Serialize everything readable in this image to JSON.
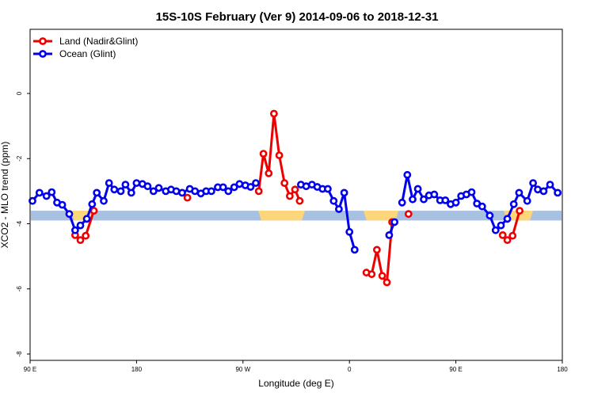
{
  "chart_data": {
    "type": "line",
    "title": "15S-10S February (Ver 9)   2014-09-06 to 2018-12-31",
    "xlabel": "Longitude (deg E)",
    "ylabel": "XCO2 - MLO trend (ppm)",
    "xlim": [
      0,
      91
    ],
    "ylim": [
      -8,
      2
    ],
    "x_ticks": [
      {
        "x": 0,
        "label": "90 E"
      },
      {
        "x": 18.2,
        "label": "180"
      },
      {
        "x": 36.4,
        "label": "90 W"
      },
      {
        "x": 54.6,
        "label": "0"
      },
      {
        "x": 72.8,
        "label": "90 E"
      },
      {
        "x": 91,
        "label": "180"
      }
    ],
    "y_ticks": [
      {
        "y": 0,
        "label": "0"
      },
      {
        "y": -2,
        "label": "-2"
      },
      {
        "y": -4,
        "label": "-4"
      },
      {
        "y": -6,
        "label": "-6"
      },
      {
        "y": -8,
        "label": "-8"
      }
    ],
    "grid": false,
    "legend_position": "top-left",
    "band": {
      "y_bottom": -3.9,
      "y_top": -3.6,
      "base_color": "#a9c1e0",
      "highlight_color": "#fcd67a",
      "highlights": [
        [
          7,
          11
        ],
        [
          39,
          47
        ],
        [
          57,
          63
        ],
        [
          81,
          86
        ]
      ]
    },
    "series": [
      {
        "name": "Land (Nadir&Glint)",
        "color": "#ee0000",
        "segments": [
          [
            [
              7.7,
              -4.35
            ],
            [
              8.6,
              -4.5
            ],
            [
              9.5,
              -4.37
            ],
            [
              10.9,
              -3.6
            ]
          ],
          [
            [
              26.9,
              -3.2
            ]
          ],
          [
            [
              39.1,
              -3.0
            ],
            [
              39.9,
              -1.85
            ],
            [
              40.8,
              -2.45
            ],
            [
              41.7,
              -0.62
            ],
            [
              42.6,
              -1.9
            ],
            [
              43.5,
              -2.75
            ],
            [
              44.4,
              -3.15
            ],
            [
              45.3,
              -2.95
            ],
            [
              46.1,
              -3.3
            ]
          ],
          [
            [
              57.5,
              -5.5
            ],
            [
              58.4,
              -5.55
            ],
            [
              59.3,
              -4.8
            ],
            [
              60.2,
              -5.6
            ],
            [
              61.0,
              -5.8
            ],
            [
              61.9,
              -3.95
            ]
          ],
          [
            [
              64.7,
              -3.7
            ]
          ],
          [
            [
              80.8,
              -4.35
            ],
            [
              81.6,
              -4.5
            ],
            [
              82.5,
              -4.37
            ],
            [
              83.7,
              -3.6
            ]
          ]
        ]
      },
      {
        "name": "Ocean (Glint)",
        "color": "#0000ee",
        "segments": [
          [
            [
              0.4,
              -3.3
            ],
            [
              1.6,
              -3.05
            ],
            [
              2.8,
              -3.15
            ],
            [
              3.7,
              -3.03
            ],
            [
              4.6,
              -3.35
            ],
            [
              5.5,
              -3.42
            ],
            [
              6.7,
              -3.7
            ],
            [
              7.7,
              -4.2
            ],
            [
              8.6,
              -4.05
            ],
            [
              9.7,
              -3.85
            ],
            [
              10.6,
              -3.4
            ],
            [
              11.4,
              -3.05
            ],
            [
              12.6,
              -3.3
            ],
            [
              13.5,
              -2.75
            ],
            [
              14.4,
              -2.95
            ],
            [
              15.5,
              -3.0
            ],
            [
              16.3,
              -2.8
            ],
            [
              17.3,
              -3.05
            ],
            [
              18.2,
              -2.75
            ],
            [
              19.2,
              -2.78
            ],
            [
              20.1,
              -2.85
            ],
            [
              21.1,
              -3.0
            ],
            [
              22.0,
              -2.9
            ],
            [
              23.2,
              -3.0
            ],
            [
              24.1,
              -2.95
            ],
            [
              25.0,
              -3.0
            ],
            [
              26.0,
              -3.05
            ],
            [
              27.3,
              -2.93
            ],
            [
              28.2,
              -3.0
            ],
            [
              29.2,
              -3.07
            ],
            [
              30.1,
              -3.0
            ],
            [
              31.0,
              -3.0
            ],
            [
              32.1,
              -2.88
            ],
            [
              33.0,
              -2.88
            ],
            [
              33.9,
              -3.0
            ],
            [
              34.9,
              -2.88
            ],
            [
              35.8,
              -2.78
            ],
            [
              36.8,
              -2.82
            ],
            [
              37.7,
              -2.87
            ],
            [
              38.6,
              -2.75
            ]
          ],
          [
            [
              46.3,
              -2.8
            ],
            [
              47.2,
              -2.85
            ],
            [
              48.2,
              -2.8
            ],
            [
              49.1,
              -2.87
            ],
            [
              50.0,
              -2.93
            ],
            [
              50.9,
              -2.93
            ],
            [
              51.9,
              -3.3
            ],
            [
              52.8,
              -3.55
            ],
            [
              53.7,
              -3.05
            ],
            [
              54.6,
              -4.25
            ],
            [
              55.5,
              -4.8
            ]
          ],
          [
            [
              61.4,
              -4.35
            ],
            [
              62.3,
              -3.95
            ]
          ],
          [
            [
              63.6,
              -3.35
            ],
            [
              64.5,
              -2.5
            ],
            [
              65.4,
              -3.25
            ],
            [
              66.3,
              -2.93
            ],
            [
              67.3,
              -3.25
            ],
            [
              68.2,
              -3.13
            ],
            [
              69.1,
              -3.1
            ],
            [
              70.1,
              -3.28
            ],
            [
              71.0,
              -3.28
            ],
            [
              71.9,
              -3.4
            ],
            [
              72.8,
              -3.35
            ],
            [
              73.7,
              -3.15
            ],
            [
              74.6,
              -3.1
            ],
            [
              75.5,
              -3.03
            ],
            [
              76.4,
              -3.38
            ],
            [
              77.3,
              -3.47
            ],
            [
              78.6,
              -3.75
            ],
            [
              79.6,
              -4.2
            ],
            [
              80.5,
              -4.05
            ],
            [
              81.6,
              -3.85
            ],
            [
              82.7,
              -3.4
            ],
            [
              83.6,
              -3.05
            ],
            [
              85.0,
              -3.3
            ],
            [
              86.0,
              -2.75
            ],
            [
              86.8,
              -2.95
            ],
            [
              87.8,
              -3.0
            ],
            [
              88.9,
              -2.8
            ],
            [
              90.2,
              -3.05
            ]
          ]
        ]
      }
    ]
  }
}
